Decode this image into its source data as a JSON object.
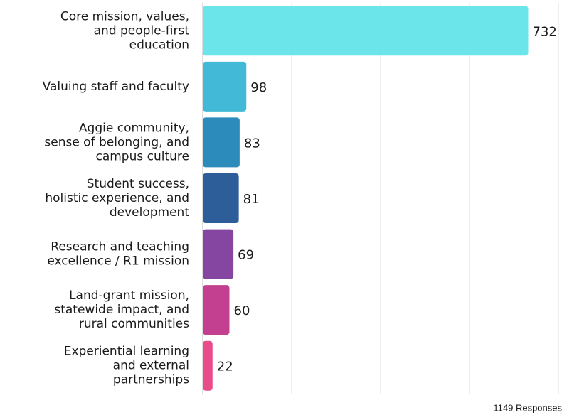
{
  "chart_data": {
    "type": "bar",
    "orientation": "horizontal",
    "categories": [
      "Core mission, values,\nand people-first\neducation",
      "Valuing staff and faculty",
      "Aggie community,\nsense of belonging, and\ncampus culture",
      "Student success,\nholistic experience, and\ndevelopment",
      "Research and teaching\nexcellence / R1 mission",
      "Land-grant mission,\nstatewide impact, and\nrural communities",
      "Experiential learning\nand external\npartnerships"
    ],
    "values": [
      732,
      98,
      83,
      81,
      69,
      60,
      22
    ],
    "colors": [
      "#6be5e9",
      "#42b9d6",
      "#2c8bbb",
      "#2e5e99",
      "#8446a0",
      "#c2408f",
      "#ea4c89"
    ],
    "xlim": [
      0,
      800
    ],
    "xticks": [
      0,
      200,
      400,
      600,
      800
    ],
    "grid": true,
    "footnote": "1149 Responses"
  }
}
